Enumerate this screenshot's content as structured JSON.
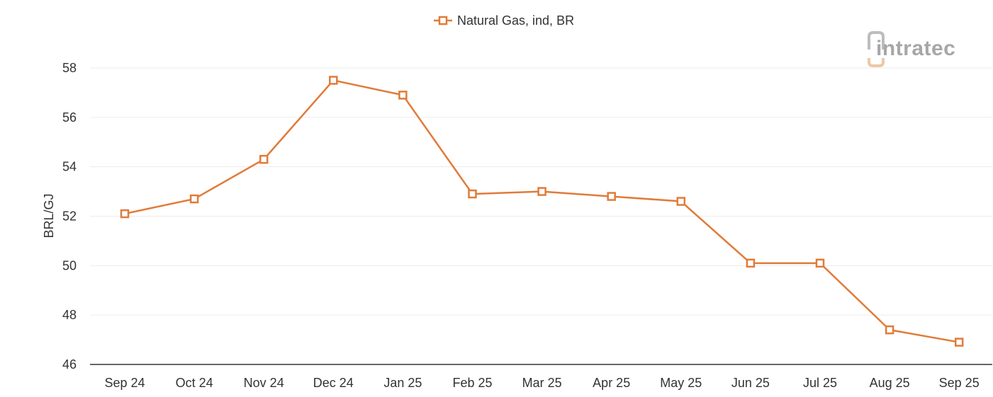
{
  "brand": {
    "name": "intratec",
    "logo_icon": "intratec-logo-icon",
    "text_color": "#a9a9a9",
    "accent_color": "#e9c9a9"
  },
  "chart_data": {
    "type": "line",
    "title": "",
    "xlabel": "",
    "ylabel": "BRL/GJ",
    "categories": [
      "Sep 24",
      "Oct 24",
      "Nov 24",
      "Dec 24",
      "Jan 25",
      "Feb 25",
      "Mar 25",
      "Apr 25",
      "May 25",
      "Jun 25",
      "Jul 25",
      "Aug 25",
      "Sep 25"
    ],
    "series": [
      {
        "name": "Natural Gas, ind, BR",
        "color": "#e07b39",
        "marker": "square-open",
        "values": [
          52.1,
          52.7,
          54.3,
          57.5,
          56.9,
          52.9,
          53.0,
          52.8,
          52.6,
          50.1,
          50.1,
          47.4,
          46.9
        ]
      }
    ],
    "ylim": [
      46,
      58
    ],
    "yticks": [
      46,
      48,
      50,
      52,
      54,
      56,
      58
    ],
    "grid": true,
    "legend_position": "top-center"
  }
}
